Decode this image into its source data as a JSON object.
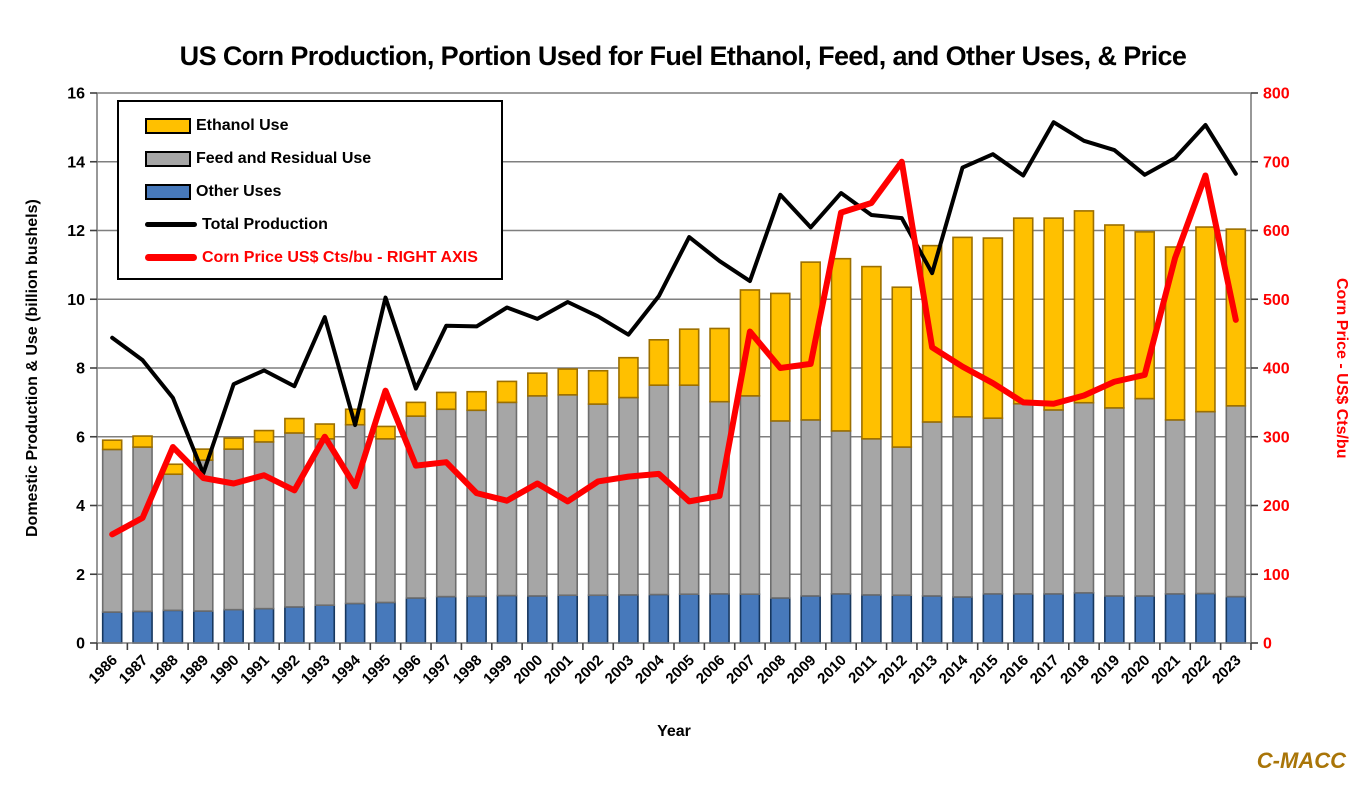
{
  "chart": {
    "title": "US Corn Production, Portion Used for Fuel Ethanol, Feed, and Other Uses, & Price",
    "watermark": "C-MACC",
    "watermark_color": "#A97508"
  },
  "chart_data": {
    "type": "combo-stacked-bar-and-lines",
    "categories": [
      1986,
      1987,
      1988,
      1989,
      1990,
      1991,
      1992,
      1993,
      1994,
      1995,
      1996,
      1997,
      1998,
      1999,
      2000,
      2001,
      2002,
      2003,
      2004,
      2005,
      2006,
      2007,
      2008,
      2009,
      2010,
      2011,
      2012,
      2013,
      2014,
      2015,
      2016,
      2017,
      2018,
      2019,
      2020,
      2021,
      2022,
      2023
    ],
    "x_axis": {
      "label": "Year"
    },
    "left_axis": {
      "label": "Domestic Production & Use (billion bushels)",
      "min": 0,
      "max": 16,
      "tick_step": 2,
      "color": "#000000"
    },
    "right_axis": {
      "label": "Corn Price - US$ Cts/bu",
      "min": 0,
      "max": 800,
      "tick_step": 100,
      "color": "#FF0000"
    },
    "grid": true,
    "legend_position": "top-left-inside",
    "stack_order": [
      "Other Uses",
      "Feed and Residual Use",
      "Ethanol Use"
    ],
    "series": [
      {
        "name": "Ethanol Use",
        "type": "bar-stack",
        "color": "#FFC000",
        "border": "#9C6F00",
        "values": [
          0.27,
          0.32,
          0.29,
          0.32,
          0.32,
          0.33,
          0.42,
          0.43,
          0.45,
          0.36,
          0.4,
          0.49,
          0.54,
          0.61,
          0.66,
          0.75,
          0.97,
          1.16,
          1.32,
          1.63,
          2.13,
          3.08,
          3.71,
          4.59,
          5.01,
          5.01,
          4.65,
          5.13,
          5.22,
          5.24,
          5.4,
          5.58,
          5.58,
          5.32,
          4.85,
          5.03,
          5.37,
          5.14
        ]
      },
      {
        "name": "Feed and Residual Use",
        "type": "bar-stack",
        "color": "#A6A6A6",
        "border": "#6E6E6E",
        "values": [
          4.73,
          4.78,
          3.96,
          4.39,
          4.67,
          4.85,
          5.06,
          4.84,
          5.2,
          4.76,
          5.29,
          5.45,
          5.41,
          5.62,
          5.82,
          5.83,
          5.56,
          5.74,
          6.09,
          6.08,
          5.59,
          5.77,
          5.15,
          5.12,
          4.74,
          4.54,
          4.31,
          5.06,
          5.24,
          5.11,
          5.53,
          5.35,
          5.53,
          5.47,
          5.74,
          5.06,
          5.29,
          5.55
        ]
      },
      {
        "name": "Other Uses",
        "type": "bar-stack",
        "color": "#4779BB",
        "border": "#17375E",
        "values": [
          0.9,
          0.92,
          0.95,
          0.93,
          0.97,
          1.0,
          1.05,
          1.1,
          1.15,
          1.18,
          1.31,
          1.35,
          1.36,
          1.38,
          1.37,
          1.39,
          1.39,
          1.4,
          1.41,
          1.42,
          1.43,
          1.42,
          1.31,
          1.37,
          1.43,
          1.4,
          1.39,
          1.37,
          1.34,
          1.43,
          1.43,
          1.43,
          1.46,
          1.37,
          1.37,
          1.43,
          1.44,
          1.35
        ]
      },
      {
        "name": "Total Production",
        "type": "line",
        "axis": "left",
        "color": "#000000",
        "line_width": 4,
        "label_color": "#000000",
        "values": [
          8.88,
          8.23,
          7.13,
          4.93,
          7.53,
          7.93,
          7.47,
          9.48,
          6.34,
          10.05,
          7.4,
          9.23,
          9.21,
          9.76,
          9.43,
          9.92,
          9.5,
          8.97,
          10.09,
          11.81,
          11.11,
          10.53,
          13.04,
          12.09,
          13.09,
          12.45,
          12.36,
          10.76,
          13.83,
          14.22,
          13.6,
          15.15,
          14.61,
          14.34,
          13.62,
          14.11,
          15.07,
          13.65
        ]
      },
      {
        "name": "Corn Price US$ Cts/bu - RIGHT AXIS",
        "type": "line",
        "axis": "right",
        "color": "#FF0000",
        "line_width": 6,
        "label_color": "#FF0000",
        "values": [
          158,
          182,
          285,
          240,
          232,
          244,
          222,
          300,
          228,
          367,
          258,
          263,
          218,
          207,
          232,
          206,
          235,
          242,
          246,
          206,
          214,
          453,
          400,
          406,
          626,
          640,
          700,
          430,
          402,
          378,
          350,
          348,
          360,
          380,
          390,
          560,
          680,
          470
        ]
      }
    ]
  },
  "style": {
    "gridline_color": "#7F7F7F",
    "axis_line_color": "#7F7F7F",
    "tick_color": "#404040"
  }
}
